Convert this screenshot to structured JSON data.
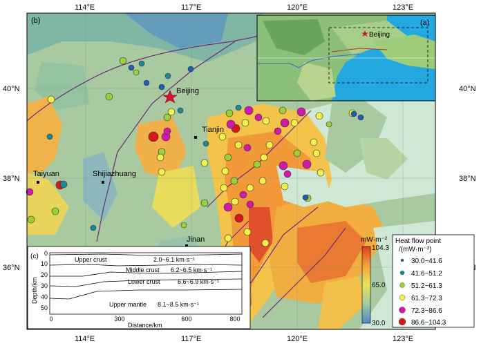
{
  "panel_b_label": "(b)",
  "panel_a_label": "(a)",
  "panel_c_label": "(c)",
  "lon_ticks": [
    "114°E",
    "117°E",
    "120°E",
    "123°E"
  ],
  "lat_ticks": [
    "40°N",
    "38°N",
    "36°N"
  ],
  "cities": {
    "beijing": "Beijing",
    "tianjin": "Tianjin",
    "taiyuan": "Taiyuan",
    "shijiazhuang": "Shijiazhuang",
    "jinan": "Jinan",
    "inset_beijing": "Beijing"
  },
  "colorbar": {
    "unit": "mW·m⁻²",
    "max": "104.3",
    "mid": "65.0",
    "min": "30.0",
    "colors": [
      "#5a8fc6",
      "#9cc8a8",
      "#e8e25a",
      "#f5a23a",
      "#e04a2a"
    ]
  },
  "legend": {
    "title1": "Heat flow point",
    "title2": "/(mW·m⁻²)",
    "items": [
      {
        "label": "30.0~41.6",
        "color": "#1f5fb0"
      },
      {
        "label": "41.6~51.2",
        "color": "#1c8a9a"
      },
      {
        "label": "51.2~61.3",
        "color": "#9bd03a"
      },
      {
        "label": "61.3~72.3",
        "color": "#f3f04a"
      },
      {
        "label": "72.3~86.6",
        "color": "#d21aa8"
      },
      {
        "label": "86.6~104.3",
        "color": "#d81818"
      }
    ]
  },
  "profile": {
    "ylabel": "Depth/km",
    "xlabel": "Distance/km",
    "yticks": [
      "0",
      "10",
      "20",
      "30",
      "40",
      "50"
    ],
    "xticks": [
      "0",
      "300",
      "600",
      "800"
    ],
    "layers": [
      {
        "name": "Upper crust",
        "vel": "2.0~6.1 km·s⁻¹"
      },
      {
        "name": "Middle crust",
        "vel": "6.2~6.5 km·s⁻¹"
      },
      {
        "name": "Lower crust",
        "vel": "6.6~6.9 km·s⁻¹"
      },
      {
        "name": "Upper mantle",
        "vel": "8.1~8.5 km·s⁻¹"
      }
    ]
  }
}
